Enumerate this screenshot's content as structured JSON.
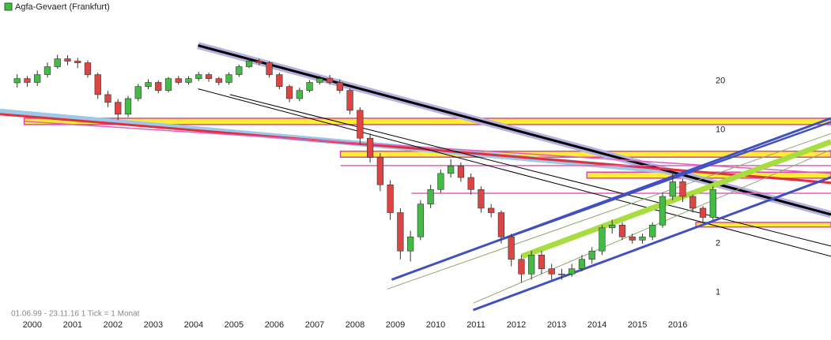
{
  "chart_data": {
    "type": "candlestick",
    "title": "Agfa-Gevaert (Frankfurt)",
    "footnote": "01.06.99 - 23.11.16   1 Tick = 1 Monat",
    "log_scale": true,
    "grid": true,
    "ylim": [
      0.69,
      63
    ],
    "yticks": [
      1,
      2,
      10,
      20
    ],
    "xlim": [
      1999.2,
      2019.8
    ],
    "xticks": [
      2000,
      2001,
      2002,
      2003,
      2004,
      2005,
      2006,
      2007,
      2008,
      2009,
      2010,
      2011,
      2012,
      2013,
      2014,
      2015,
      2016
    ],
    "up_color": "#44bb44",
    "down_color": "#dd4444",
    "x": [
      1999.625,
      1999.875,
      2000.125,
      2000.375,
      2000.625,
      2000.875,
      2001.125,
      2001.375,
      2001.625,
      2001.875,
      2002.125,
      2002.375,
      2002.625,
      2002.875,
      2003.125,
      2003.375,
      2003.625,
      2003.875,
      2004.125,
      2004.375,
      2004.625,
      2004.875,
      2005.125,
      2005.375,
      2005.625,
      2005.875,
      2006.125,
      2006.375,
      2006.625,
      2006.875,
      2007.125,
      2007.375,
      2007.625,
      2007.875,
      2008.125,
      2008.375,
      2008.625,
      2008.875,
      2009.125,
      2009.375,
      2009.625,
      2009.875,
      2010.125,
      2010.375,
      2010.625,
      2010.875,
      2011.125,
      2011.375,
      2011.625,
      2011.875,
      2012.125,
      2012.375,
      2012.625,
      2012.875,
      2013.125,
      2013.375,
      2013.625,
      2013.875,
      2014.125,
      2014.375,
      2014.625,
      2014.875,
      2015.125,
      2015.375,
      2015.625,
      2015.875,
      2016.125,
      2016.375,
      2016.625,
      2016.875
    ],
    "open": [
      19.5,
      20.7,
      19.6,
      21.9,
      24.5,
      27.4,
      26.5,
      25.9,
      21.9,
      16.5,
      14.8,
      12.5,
      15.6,
      18.5,
      19.6,
      17.5,
      20.7,
      19.6,
      20.7,
      21.9,
      20.7,
      19.6,
      21.9,
      24.5,
      26.5,
      25.9,
      21.9,
      18.5,
      15.6,
      17.5,
      19.6,
      20.7,
      19.6,
      17.5,
      13.2,
      8.9,
      6.8,
      4.6,
      3.1,
      1.8,
      2.2,
      3.5,
      4.3,
      5.4,
      6.0,
      5.1,
      4.3,
      3.3,
      3.1,
      2.2,
      1.6,
      1.3,
      1.7,
      1.4,
      1.3,
      1.3,
      1.4,
      1.6,
      1.8,
      2.5,
      2.6,
      2.2,
      2.1,
      2.2,
      2.6,
      3.9,
      4.8,
      3.9,
      3.3,
      2.9
    ],
    "high": [
      22.0,
      21.5,
      23.2,
      26.0,
      29.0,
      28.8,
      27.8,
      26.8,
      22.5,
      17.4,
      15.5,
      16.2,
      19.2,
      20.5,
      20.2,
      21.2,
      21.5,
      21.4,
      22.8,
      22.5,
      21.2,
      22.6,
      25.2,
      27.6,
      27.4,
      26.4,
      22.5,
      19.0,
      18.2,
      20.3,
      21.5,
      21.8,
      20.5,
      18.0,
      13.8,
      9.5,
      7.2,
      4.9,
      3.3,
      2.4,
      3.7,
      4.6,
      5.7,
      6.6,
      6.3,
      5.4,
      4.5,
      3.5,
      3.2,
      2.3,
      1.7,
      1.8,
      1.8,
      1.5,
      1.4,
      1.5,
      1.7,
      1.9,
      2.6,
      2.8,
      2.7,
      2.3,
      2.3,
      2.7,
      4.1,
      5.5,
      5.0,
      4.0,
      3.4,
      4.5
    ],
    "low": [
      18.2,
      18.4,
      18.6,
      21.0,
      23.8,
      25.0,
      24.0,
      21.0,
      15.5,
      13.8,
      11.5,
      12.0,
      15.0,
      17.8,
      16.8,
      17.0,
      19.0,
      19.0,
      20.0,
      19.8,
      18.8,
      19.0,
      21.2,
      24.0,
      25.0,
      21.0,
      17.8,
      14.8,
      15.0,
      17.0,
      19.0,
      19.0,
      16.8,
      12.5,
      8.2,
      6.3,
      4.2,
      2.8,
      1.6,
      1.55,
      2.1,
      3.3,
      4.1,
      5.1,
      4.8,
      4.0,
      3.1,
      2.9,
      2.0,
      1.45,
      1.15,
      1.2,
      1.3,
      1.2,
      1.2,
      1.25,
      1.35,
      1.5,
      1.7,
      2.3,
      2.1,
      2.0,
      2.0,
      2.1,
      2.5,
      3.7,
      3.6,
      3.1,
      2.7,
      2.8
    ],
    "close": [
      20.7,
      19.6,
      21.9,
      24.5,
      27.4,
      26.5,
      25.9,
      21.9,
      16.5,
      14.8,
      12.5,
      15.6,
      18.5,
      19.6,
      17.5,
      20.7,
      19.6,
      20.7,
      21.9,
      20.7,
      19.6,
      21.9,
      24.5,
      26.5,
      25.9,
      21.9,
      18.5,
      15.6,
      17.5,
      19.6,
      20.7,
      19.6,
      17.5,
      13.2,
      8.9,
      6.8,
      4.6,
      3.1,
      1.8,
      2.2,
      3.5,
      4.3,
      5.4,
      6.0,
      5.1,
      4.3,
      3.3,
      3.1,
      2.2,
      1.6,
      1.3,
      1.7,
      1.4,
      1.3,
      1.3,
      1.4,
      1.6,
      1.8,
      2.5,
      2.6,
      2.2,
      2.1,
      2.2,
      2.6,
      3.9,
      4.8,
      3.9,
      3.3,
      2.9,
      4.3
    ],
    "bands": [
      {
        "x": [
          1999.8,
          2019.8
        ],
        "y": [
          10.8,
          11.8
        ],
        "color": "#ffee33",
        "border": "#e040b0"
      },
      {
        "x": [
          2007.64,
          2019.8
        ],
        "y": [
          6.8,
          7.4
        ],
        "color": "#ffee33",
        "border": "#e040b0"
      },
      {
        "x": [
          2013.75,
          2019.8
        ],
        "y": [
          5.05,
          5.5
        ],
        "color": "#ffee33",
        "border": "#e040b0"
      },
      {
        "x": [
          2016.45,
          2019.8
        ],
        "y": [
          2.53,
          2.7
        ],
        "color": "#ffee33",
        "border": "#e040b0"
      }
    ],
    "trendlines": [
      {
        "x": [
          1999.2,
          2016.4
        ],
        "y": [
          13.0,
          5.4
        ],
        "color": "#9ec8e8",
        "width": 7
      },
      {
        "x": [
          2004.11,
          2019.8
        ],
        "y": [
          33.1,
          3.02
        ],
        "color": "#b8b0e0",
        "width": 9
      },
      {
        "x": [
          2004.11,
          2019.8
        ],
        "y": [
          33.1,
          3.02
        ],
        "color": "#000000",
        "width": 3
      },
      {
        "x": [
          1999.2,
          2019.8
        ],
        "y": [
          12.5,
          4.73
        ],
        "color": "#e03040",
        "width": 3
      },
      {
        "x": [
          1999.8,
          2019.8
        ],
        "y": [
          11.3,
          5.4
        ],
        "color": "#e060c0",
        "width": 1.5
      },
      {
        "x": [
          2007.64,
          2019.8
        ],
        "y": [
          6.04,
          6.04
        ],
        "color": "#e060c0",
        "width": 1.5
      },
      {
        "x": [
          2009.4,
          2019.8
        ],
        "y": [
          4.08,
          4.08
        ],
        "color": "#e060c0",
        "width": 1.5
      },
      {
        "x": [
          2004.11,
          2019.8
        ],
        "y": [
          17.9,
          1.67
        ],
        "color": "#000000",
        "width": 1
      },
      {
        "x": [
          2004.9,
          2019.8
        ],
        "y": [
          16.5,
          1.93
        ],
        "color": "#000000",
        "width": 1
      },
      {
        "x": [
          2012.14,
          2019.8
        ],
        "y": [
          1.67,
          8.46
        ],
        "color": "#a8dc40",
        "width": 7
      },
      {
        "x": [
          2008.8,
          2019.8
        ],
        "y": [
          1.05,
          9.5
        ],
        "color": "#90a870",
        "width": 1
      },
      {
        "x": [
          2010.93,
          2019.8
        ],
        "y": [
          0.86,
          7.56
        ],
        "color": "#90a870",
        "width": 1
      },
      {
        "x": [
          2008.91,
          2019.8
        ],
        "y": [
          1.2,
          11.8
        ],
        "color": "#4050c0",
        "width": 3
      },
      {
        "x": [
          2011.56,
          2019.8
        ],
        "y": [
          2.09,
          11.2
        ],
        "color": "#4050c0",
        "width": 2.5
      },
      {
        "x": [
          2010.93,
          2019.8
        ],
        "y": [
          0.78,
          5.12
        ],
        "color": "#4050c0",
        "width": 3
      }
    ]
  }
}
